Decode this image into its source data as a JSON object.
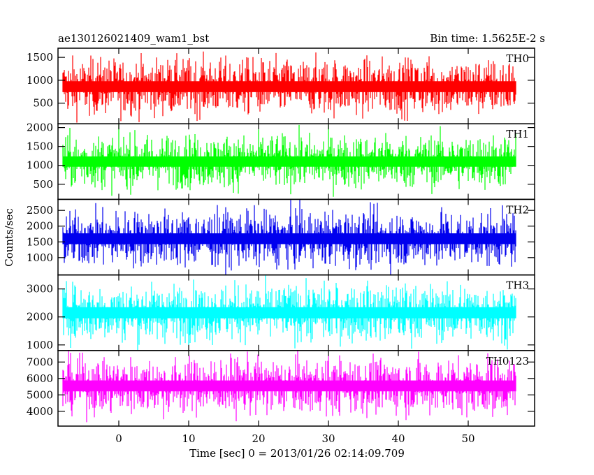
{
  "header": {
    "title": "ae130126021409_wam1_bst",
    "bin_time": "Bin time: 1.5625E-2 s"
  },
  "chart_data": {
    "type": "line",
    "xlabel": "Time [sec] 0 = 2013/01/26 02:14:09.709",
    "ylabel": "Counts/sec",
    "xlim": [
      -8.7,
      59.5
    ],
    "x_ticks": [
      0,
      10,
      20,
      30,
      40,
      50
    ],
    "x_tick_labels": [
      "0",
      "10",
      "20",
      "30",
      "40",
      "50"
    ],
    "data_x_range": [
      -8.0,
      56.8
    ],
    "bin_time": 0.015625,
    "panels": [
      {
        "name": "TH0",
        "color": "#ff0000",
        "ylim": [
          50,
          1700
        ],
        "y_ticks": [
          500,
          1000,
          1500
        ],
        "mean": 860,
        "low": 150,
        "high": 1700
      },
      {
        "name": "TH1",
        "color": "#00ff00",
        "ylim": [
          100,
          2100
        ],
        "y_ticks": [
          500,
          1000,
          1500,
          2000
        ],
        "mean": 1100,
        "low": 260,
        "high": 2050
      },
      {
        "name": "TH2",
        "color": "#0000ee",
        "ylim": [
          450,
          2850
        ],
        "y_ticks": [
          1000,
          1500,
          2000,
          2500
        ],
        "mean": 1600,
        "low": 560,
        "high": 2800
      },
      {
        "name": "TH3",
        "color": "#00ffff",
        "ylim": [
          800,
          3500
        ],
        "y_ticks": [
          1000,
          2000,
          3000
        ],
        "mean": 2150,
        "low": 900,
        "high": 3450
      },
      {
        "name": "TH0123",
        "color": "#ff00ff",
        "ylim": [
          3100,
          7700
        ],
        "y_ticks": [
          4000,
          5000,
          6000,
          7000
        ],
        "mean": 5550,
        "low": 3300,
        "high": 7600
      }
    ]
  }
}
